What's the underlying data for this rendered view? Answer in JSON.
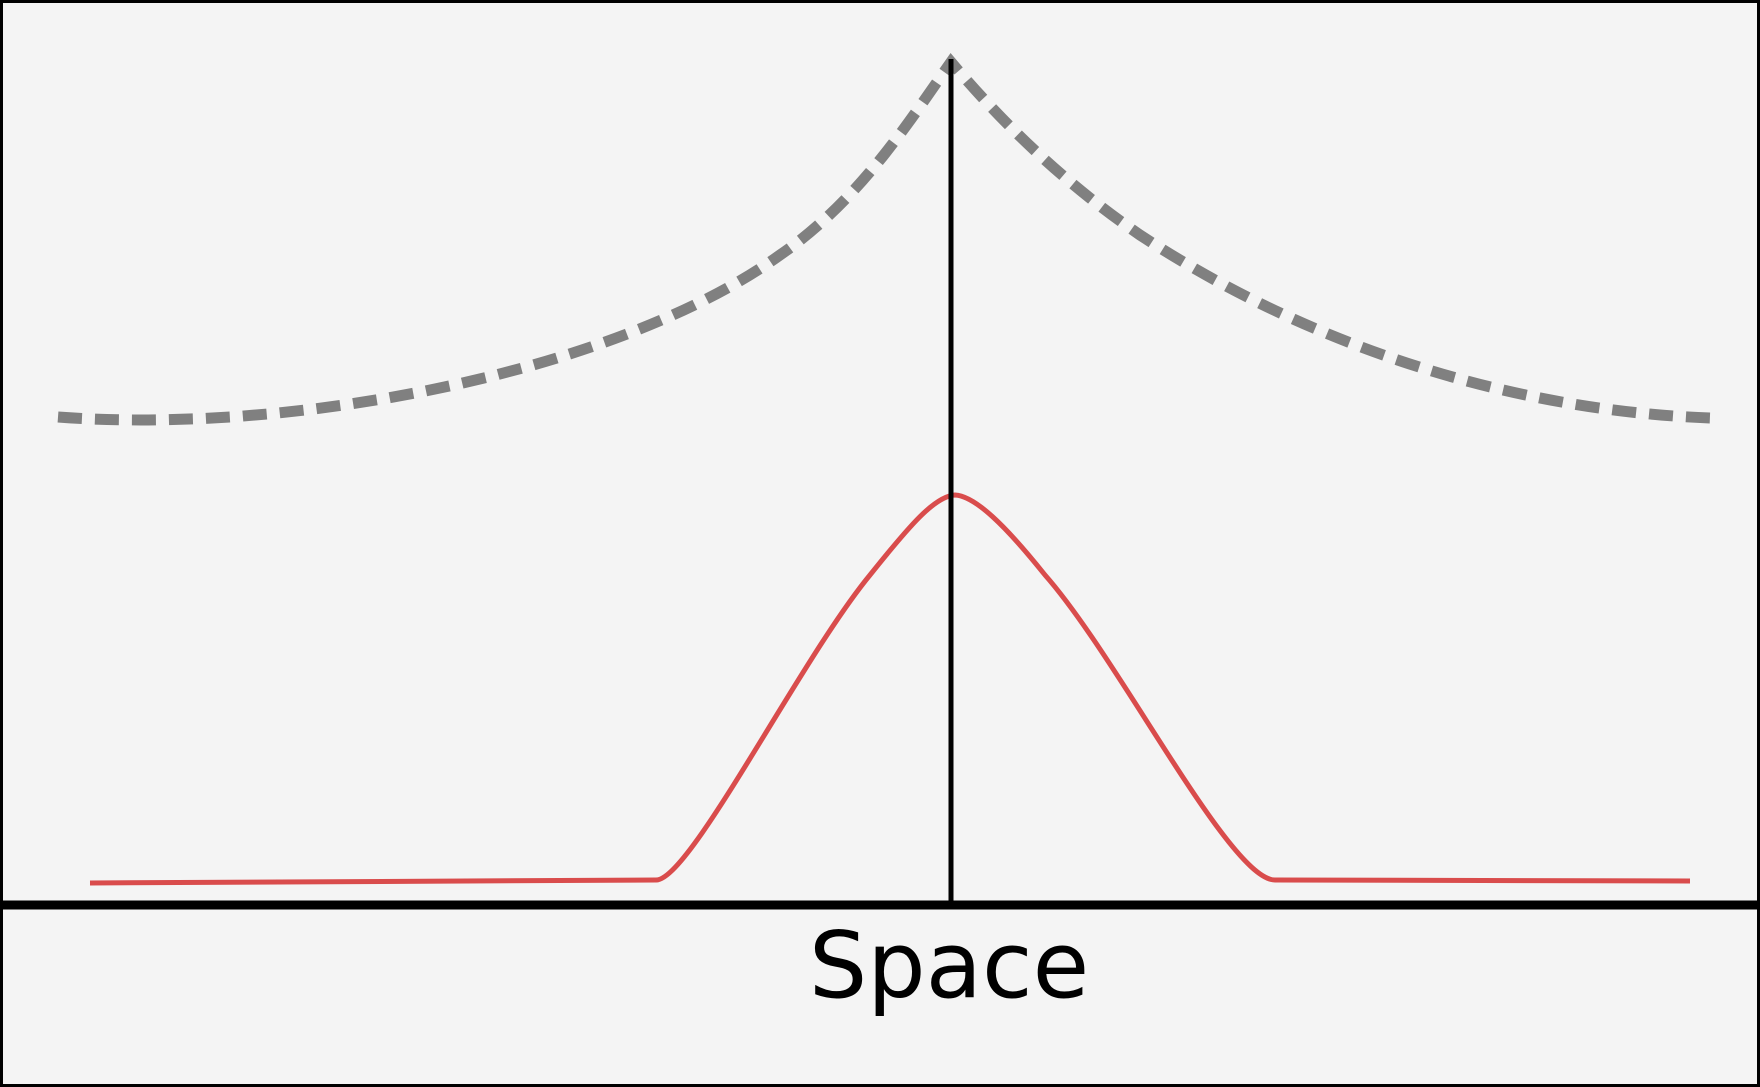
{
  "diagram": {
    "axis_label": "Space",
    "colors": {
      "background": "#f4f4f4",
      "frame": "#000000",
      "axis": "#000000",
      "center_line": "#000000",
      "dashed_curve": "#808080",
      "peak_curve": "#d94c4c"
    },
    "elements": [
      {
        "name": "dashed-cusp-curve",
        "style": "dashed"
      },
      {
        "name": "red-bump-curve",
        "style": "solid"
      },
      {
        "name": "center-vertical-line",
        "style": "solid"
      },
      {
        "name": "horizontal-axis",
        "style": "solid"
      }
    ]
  }
}
